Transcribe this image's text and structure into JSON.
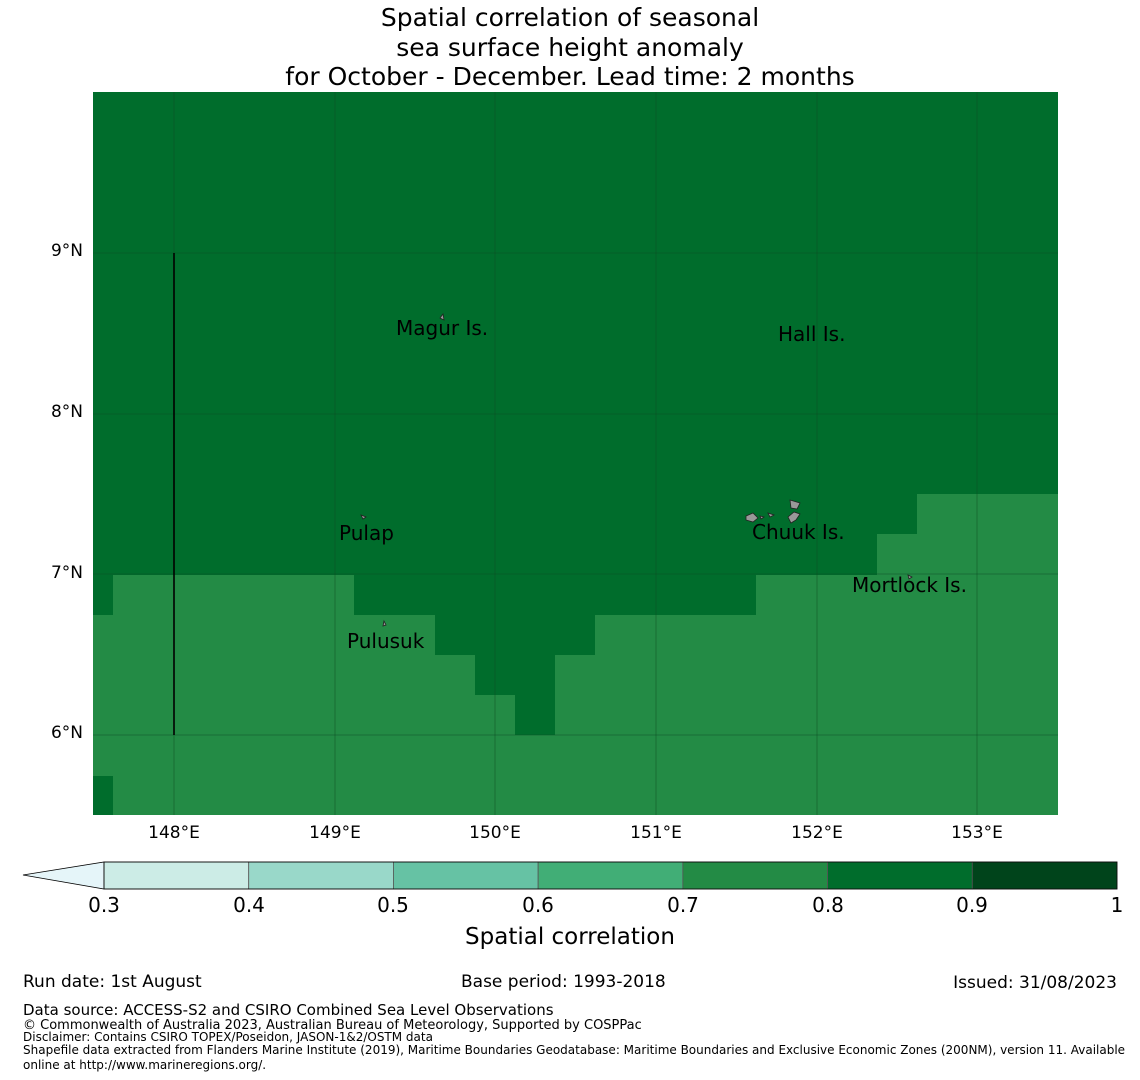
{
  "title": {
    "line1": "Spatial correlation of seasonal",
    "line2": "sea surface height anomaly",
    "line3": "for October - December. Lead time: 2 months"
  },
  "map": {
    "lon_range": [
      147.5,
      153.5
    ],
    "lat_range": [
      5.5,
      10.0
    ],
    "lat_labels": [
      "9°N",
      "8°N",
      "7°N",
      "6°N"
    ],
    "lon_labels": [
      "148°E",
      "149°E",
      "150°E",
      "151°E",
      "152°E",
      "153°E"
    ],
    "colors": {
      "high": "#006d2c",
      "mid": "#238b45",
      "land": "#999999"
    },
    "places": [
      {
        "name": "Magur Is.",
        "lon": 149.75,
        "lat": 8.53
      },
      {
        "name": "Hall Is.",
        "lon": 151.98,
        "lat": 8.49
      },
      {
        "name": "Pulap",
        "lon": 149.2,
        "lat": 7.25
      },
      {
        "name": "Chuuk Is.",
        "lon": 151.9,
        "lat": 7.26
      },
      {
        "name": "Mortlock Is.",
        "lon": 152.6,
        "lat": 6.93
      },
      {
        "name": "Pulusuk",
        "lon": 149.33,
        "lat": 6.58
      }
    ]
  },
  "colorbar": {
    "title": "Spatial correlation",
    "ticks": [
      "0.3",
      "0.4",
      "0.5",
      "0.6",
      "0.7",
      "0.8",
      "0.9",
      "1"
    ],
    "under_color": "#e5f5f9",
    "colors": [
      "#ccece6",
      "#99d8c9",
      "#66c2a4",
      "#41ae76",
      "#238b45",
      "#006d2c",
      "#00441b"
    ]
  },
  "footer": {
    "run_date": "Run date: 1st August",
    "base_period": "Base period: 1993-2018",
    "issued": "Issued: 31/08/2023",
    "data_source": "Data source: ACCESS-S2 and CSIRO Combined Sea Level Observations",
    "copyright": "© Commonwealth of Australia 2023, Australian Bureau of Meteorology, Supported by COSPPac",
    "disclaimer": "Disclaimer: Contains CSIRO TOPEX/Poseidon, JASON-1&2/OSTM data",
    "shapefile1": "Shapefile data extracted from Flanders Marine Institute (2019), Maritime Boundaries Geodatabase: Maritime Boundaries and Exclusive Economic Zones (200NM), version 11. Available",
    "shapefile2": "online at http://www.marineregions.org/."
  }
}
